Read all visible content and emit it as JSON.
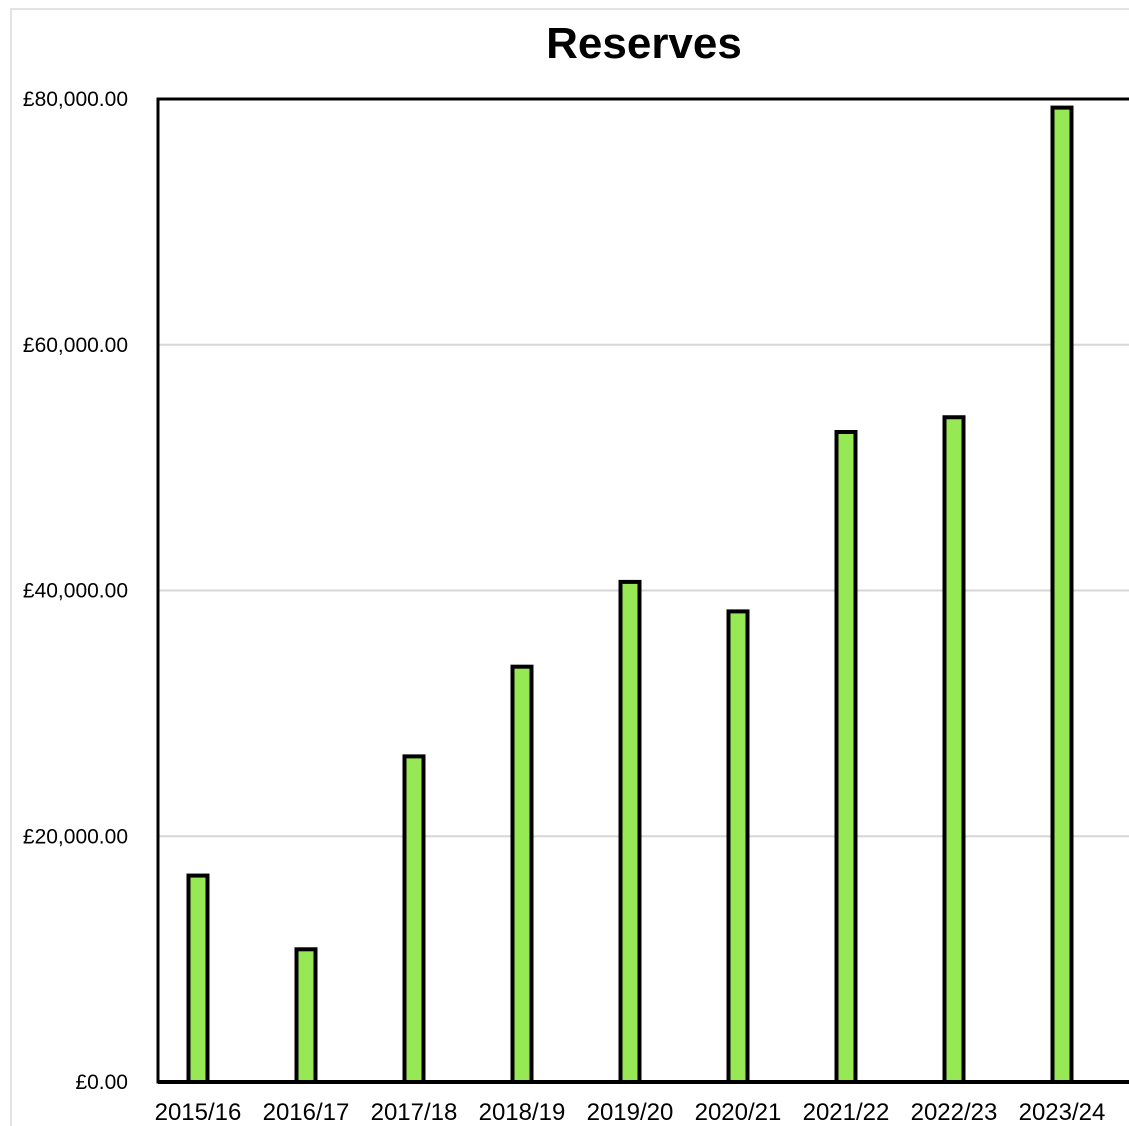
{
  "chart_data": {
    "type": "bar",
    "title": "Reserves",
    "xlabel": "",
    "ylabel": "",
    "categories": [
      "2015/16",
      "2016/17",
      "2017/18",
      "2018/19",
      "2019/20",
      "2020/21",
      "2021/22",
      "2022/23",
      "2023/24"
    ],
    "values": [
      16800,
      10800,
      26500,
      33800,
      40700,
      38300,
      52900,
      54100,
      79300
    ],
    "ylim": [
      0,
      80000
    ],
    "yticks": [
      0,
      20000,
      40000,
      60000,
      80000
    ],
    "ytick_labels": [
      "£0.00",
      "£20,000.00",
      "£40,000.00",
      "£60,000.00",
      "£80,000.00"
    ],
    "grid": true,
    "legend": "none",
    "colors": {
      "bar_fill": "#97e855",
      "bar_stroke": "#000000",
      "grid": "#d6d6d6",
      "axis": "#000000"
    }
  }
}
